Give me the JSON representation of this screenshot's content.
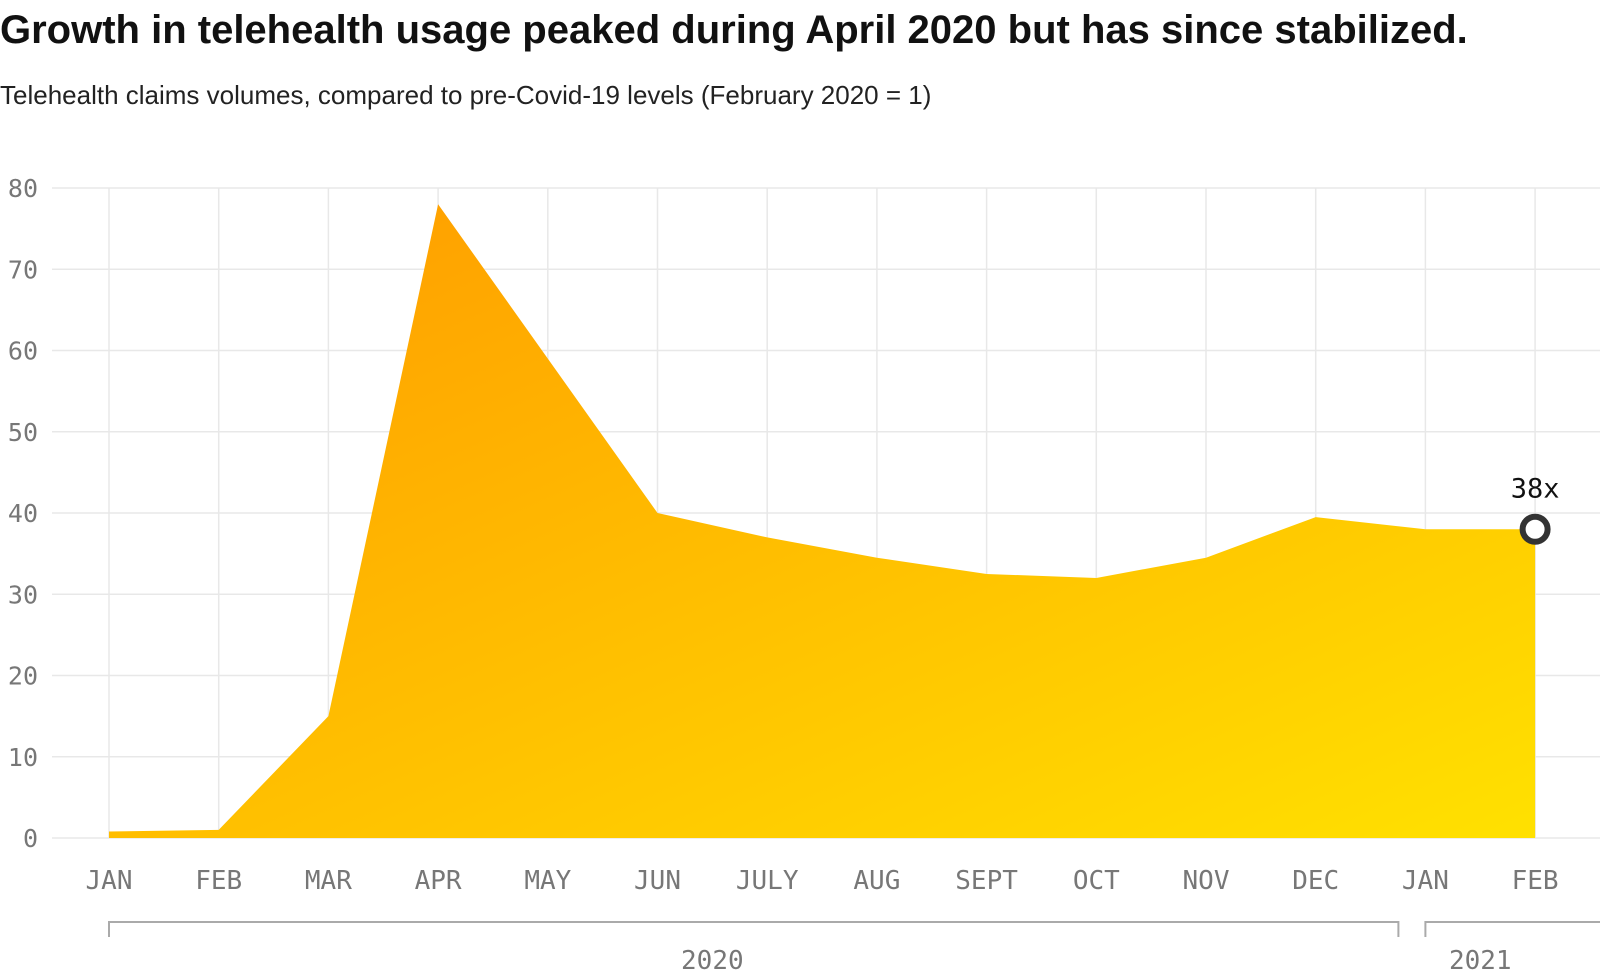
{
  "chart_data": {
    "type": "area",
    "title": "Growth in telehealth usage peaked during April 2020 but has since stabilized.",
    "subtitle": "Telehealth claims volumes, compared to pre-Covid-19 levels (February 2020 = 1)",
    "categories": [
      "JAN",
      "FEB",
      "MAR",
      "APR",
      "MAY",
      "JUN",
      "JULY",
      "AUG",
      "SEPT",
      "OCT",
      "NOV",
      "DEC",
      "JAN",
      "FEB"
    ],
    "values": [
      0.8,
      1,
      15,
      78,
      59,
      40,
      37,
      34.5,
      32.5,
      32,
      34.5,
      39.5,
      38,
      38
    ],
    "yticks": [
      0,
      10,
      20,
      30,
      40,
      50,
      60,
      70,
      80
    ],
    "ylim": [
      0,
      80
    ],
    "grid": true,
    "years": [
      {
        "label": "2020",
        "from_index": 0,
        "to_index": 11
      },
      {
        "label": "2021",
        "from_index": 12,
        "to_index": 13
      }
    ],
    "annotation": {
      "index": 13,
      "text": "38x"
    },
    "colors": {
      "gradient_start": "#ff9a00",
      "gradient_end": "#ffe100",
      "grid": "#e8e8e8",
      "axis_text": "#777777"
    }
  }
}
